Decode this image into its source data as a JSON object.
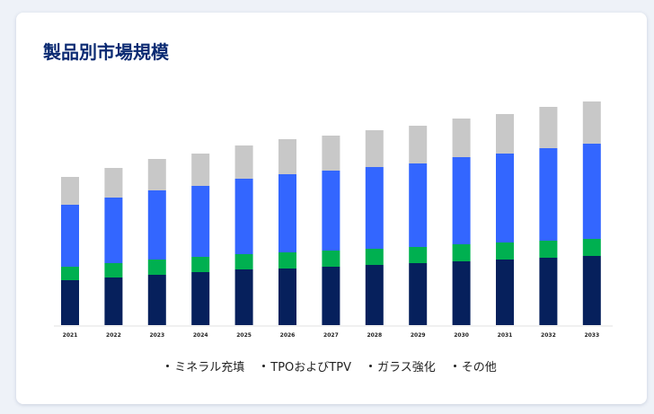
{
  "title": "製品別市場規模",
  "chart_data": {
    "type": "bar",
    "stacked": true,
    "title": "製品別市場規模",
    "xlabel": "",
    "ylabel": "",
    "ylim": [
      0,
      100
    ],
    "categories": [
      "2021",
      "2022",
      "2023",
      "2024",
      "2025",
      "2026",
      "2027",
      "2028",
      "2029",
      "2030",
      "2031",
      "2032",
      "2033"
    ],
    "series": [
      {
        "name": "ミネラル充填",
        "color": "#06205c",
        "values": [
          20,
          21.2,
          22.4,
          23.6,
          24.8,
          25.2,
          26,
          26.8,
          27.6,
          28.4,
          29.2,
          30,
          30.8
        ]
      },
      {
        "name": "TPOおよびTPV",
        "color": "#00b050",
        "values": [
          6,
          6.4,
          6.8,
          6.8,
          6.8,
          7.2,
          7.2,
          7.2,
          7.2,
          7.6,
          7.6,
          7.6,
          7.6
        ]
      },
      {
        "name": "ガラス強化",
        "color": "#3366ff",
        "values": [
          27.6,
          29.2,
          30.8,
          31.6,
          33.6,
          34.8,
          35.6,
          36.4,
          37.2,
          38.8,
          39.6,
          41.2,
          42.4
        ]
      },
      {
        "name": "その他",
        "color": "#c8c8c8",
        "values": [
          12.4,
          13.2,
          14,
          14.4,
          14.8,
          15.6,
          15.6,
          16.4,
          16.8,
          17.2,
          17.6,
          18.4,
          18.8
        ]
      }
    ],
    "legend_position": "bottom",
    "grid": false
  }
}
